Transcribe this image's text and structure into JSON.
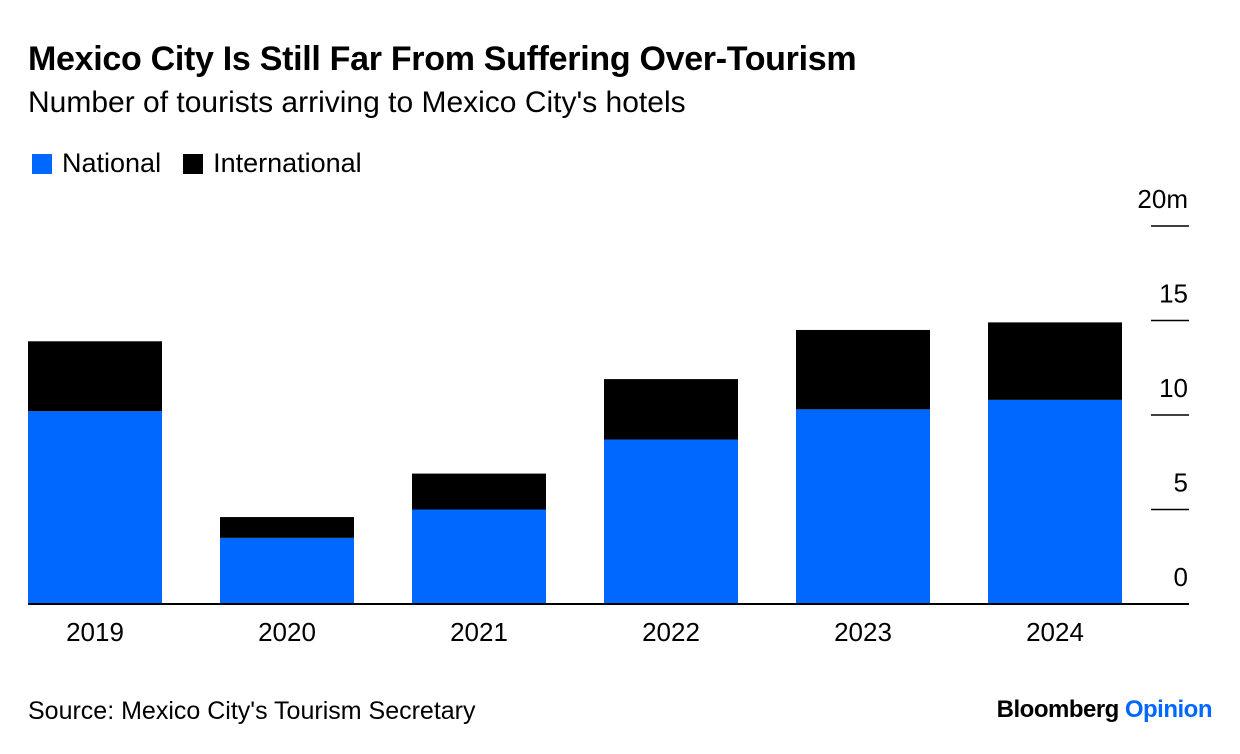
{
  "title": "Mexico City Is Still Far From Suffering Over-Tourism",
  "subtitle": "Number of tourists arriving to Mexico City's hotels",
  "source": "Source: Mexico City's Tourism Secretary",
  "brand": {
    "name": "Bloomberg",
    "section": "Opinion"
  },
  "colors": {
    "national": "#0068ff",
    "international": "#000000",
    "brand_accent": "#0068ff"
  },
  "chart_data": {
    "type": "bar",
    "stacked": true,
    "categories": [
      "2019",
      "2020",
      "2021",
      "2022",
      "2023",
      "2024"
    ],
    "series": [
      {
        "name": "National",
        "color": "#0068ff",
        "values": [
          10.2,
          3.5,
          5.0,
          8.7,
          10.3,
          10.8
        ]
      },
      {
        "name": "International",
        "color": "#000000",
        "values": [
          3.7,
          1.1,
          1.9,
          3.2,
          4.2,
          4.1
        ]
      }
    ],
    "ylim": [
      0,
      20
    ],
    "yticks": [
      {
        "value": 0,
        "label": "0"
      },
      {
        "value": 5,
        "label": "5"
      },
      {
        "value": 10,
        "label": "10"
      },
      {
        "value": 15,
        "label": "15"
      },
      {
        "value": 20,
        "label": "20m"
      }
    ],
    "y_axis_side": "right",
    "grid": false,
    "legend_position": "top-left"
  }
}
